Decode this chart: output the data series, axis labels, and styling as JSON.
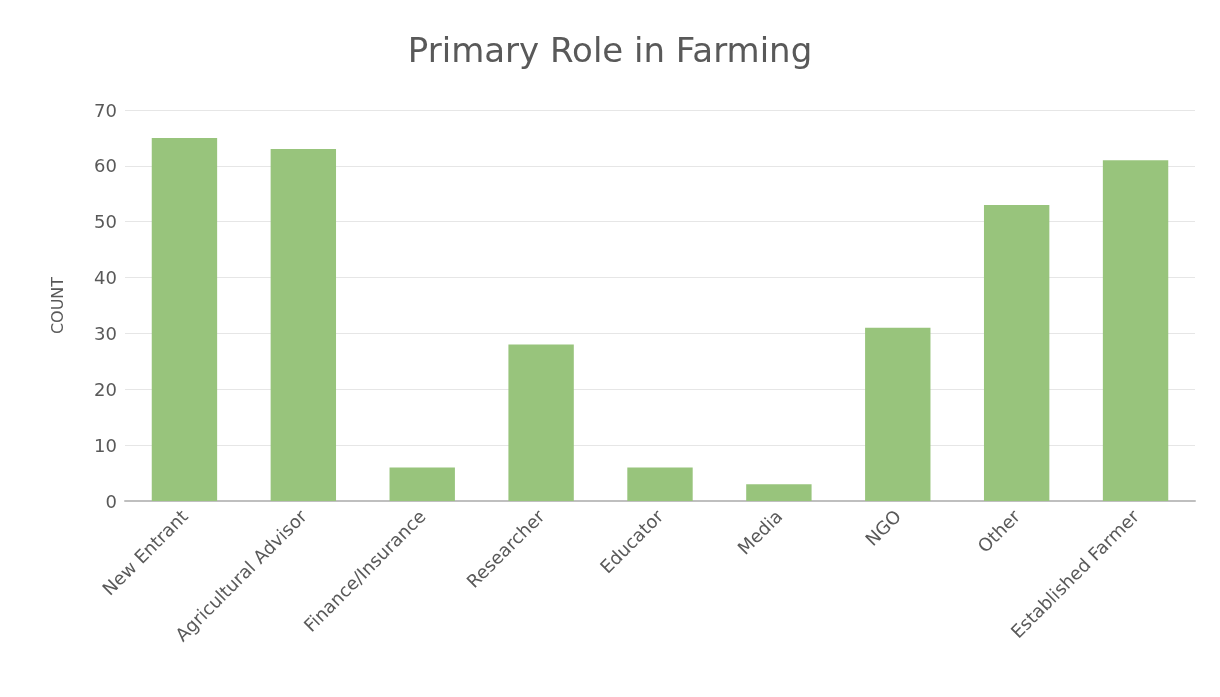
{
  "chart_data": {
    "type": "bar",
    "title": "Primary Role in Farming",
    "ylabel": "COUNT",
    "categories": [
      "New Entrant",
      "Agricultural Advisor",
      "Finance/Insurance",
      "Researcher",
      "Educator",
      "Media",
      "NGO",
      "Other",
      "Established Farmer"
    ],
    "values": [
      65,
      63,
      6,
      28,
      6,
      3,
      31,
      53,
      61
    ],
    "color": "#98c47c",
    "ylim": [
      0,
      70
    ],
    "yticks": [
      0,
      10,
      20,
      30,
      40,
      50,
      60,
      70
    ],
    "grid": "y"
  }
}
